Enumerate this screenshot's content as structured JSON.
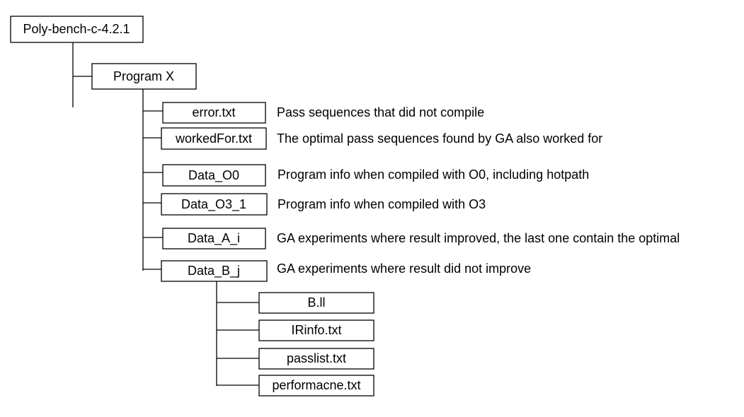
{
  "root": {
    "label": "Poly-bench-c-4.2.1"
  },
  "program": {
    "label": "Program X"
  },
  "files": [
    {
      "label": "error.txt",
      "description": "Pass sequences that did not compile"
    },
    {
      "label": "workedFor.txt",
      "description": "The optimal pass sequences found by GA also worked for"
    },
    {
      "label": "Data_O0",
      "description": "Program info when compiled with O0, including hotpath"
    },
    {
      "label": "Data_O3_1",
      "description": "Program info when compiled with O3"
    },
    {
      "label": "Data_A_i",
      "description": "GA experiments where result improved, the last one contain the optimal"
    },
    {
      "label": "Data_B_j",
      "description": "GA experiments where result did not improve"
    }
  ],
  "data_b_children": [
    {
      "label": "B.ll"
    },
    {
      "label": "IRinfo.txt"
    },
    {
      "label": "passlist.txt"
    },
    {
      "label": "performacne.txt"
    }
  ]
}
